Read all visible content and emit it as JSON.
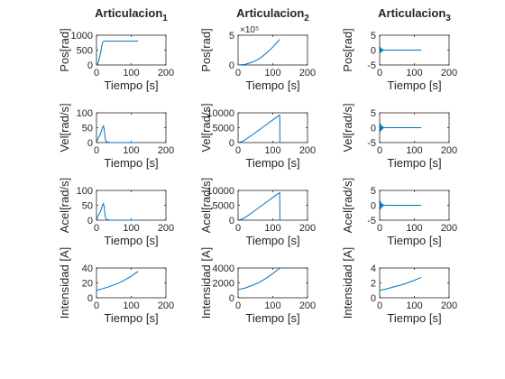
{
  "figure": {
    "column_titles": [
      {
        "base": "Articulacion",
        "sub": "1"
      },
      {
        "base": "Articulacion",
        "sub": "2"
      },
      {
        "base": "Articulacion",
        "sub": "3"
      }
    ]
  },
  "chart_data": [
    {
      "id": "r0c0",
      "type": "line",
      "xlabel": "Tiempo [s]",
      "ylabel": "Pos[rad]",
      "xlim": [
        0,
        200
      ],
      "ylim": [
        0,
        1000
      ],
      "xticks": [
        0,
        100,
        200
      ],
      "yticks": [
        0,
        500,
        1000
      ],
      "line_color": "#0072BD",
      "series": [
        {
          "x": [
            0,
            3,
            6,
            9,
            12,
            14,
            16,
            18,
            20,
            25,
            30,
            40,
            60,
            80,
            100,
            120
          ],
          "y": [
            0,
            30,
            120,
            260,
            420,
            560,
            680,
            760,
            790,
            800,
            800,
            800,
            800,
            800,
            800,
            800
          ]
        }
      ]
    },
    {
      "id": "r0c1",
      "type": "line",
      "xlabel": "Tiempo [s]",
      "ylabel": "Pos[rad]",
      "exponent_label": "×10⁵",
      "xlim": [
        0,
        200
      ],
      "ylim": [
        0,
        5
      ],
      "xticks": [
        0,
        100,
        200
      ],
      "yticks": [
        0,
        5
      ],
      "line_color": "#0072BD",
      "series": [
        {
          "x": [
            0,
            20,
            40,
            60,
            80,
            100,
            120
          ],
          "y": [
            0,
            0.1,
            0.45,
            1.0,
            1.9,
            3.0,
            4.3
          ]
        }
      ]
    },
    {
      "id": "r0c2",
      "type": "line",
      "xlabel": "Tiempo [s]",
      "ylabel": "Pos[rad]",
      "xlim": [
        0,
        200
      ],
      "ylim": [
        -5,
        5
      ],
      "xticks": [
        0,
        100,
        200
      ],
      "yticks": [
        -5,
        0,
        5
      ],
      "line_color": "#0072BD",
      "series": [
        {
          "x": [
            0,
            1,
            2,
            3,
            4,
            5,
            6,
            7,
            8,
            10,
            12,
            15,
            20,
            40,
            80,
            120
          ],
          "y": [
            0,
            1.1,
            -1.0,
            0.9,
            -0.7,
            0.5,
            -0.4,
            0.3,
            -0.2,
            0.15,
            -0.1,
            0.05,
            0,
            0,
            0,
            0
          ]
        }
      ]
    },
    {
      "id": "r1c0",
      "type": "line",
      "xlabel": "Tiempo [s]",
      "ylabel": "Vel[rad/s]",
      "xlim": [
        0,
        200
      ],
      "ylim": [
        0,
        100
      ],
      "xticks": [
        0,
        100,
        200
      ],
      "yticks": [
        0,
        50,
        100
      ],
      "line_color": "#0072BD",
      "series": [
        {
          "x": [
            0,
            3,
            6,
            10,
            14,
            17,
            20,
            22,
            24,
            26,
            30,
            40,
            60,
            80,
            100,
            120
          ],
          "y": [
            0,
            10,
            18,
            25,
            38,
            50,
            56,
            45,
            25,
            8,
            2,
            0,
            0,
            0,
            0,
            0
          ]
        }
      ]
    },
    {
      "id": "r1c1",
      "type": "line",
      "xlabel": "Tiempo [s]",
      "ylabel": "Vel[rad/s]",
      "xlim": [
        0,
        200
      ],
      "ylim": [
        0,
        10000
      ],
      "xticks": [
        0,
        100,
        200
      ],
      "yticks": [
        0,
        5000,
        10000
      ],
      "line_color": "#0072BD",
      "series": [
        {
          "x": [
            0,
            10,
            20,
            40,
            60,
            80,
            100,
            118,
            120,
            120.5,
            122
          ],
          "y": [
            0,
            300,
            900,
            2500,
            4200,
            5900,
            7600,
            9100,
            9200,
            0,
            0
          ]
        }
      ]
    },
    {
      "id": "r1c2",
      "type": "line",
      "xlabel": "Tiempo [s]",
      "ylabel": "Vel[rad/s]",
      "xlim": [
        0,
        200
      ],
      "ylim": [
        -5,
        5
      ],
      "xticks": [
        0,
        100,
        200
      ],
      "yticks": [
        -5,
        0,
        5
      ],
      "line_color": "#0072BD",
      "series": [
        {
          "x": [
            0,
            1,
            2,
            3,
            4,
            5,
            6,
            7,
            8,
            10,
            12,
            15,
            20,
            40,
            80,
            120
          ],
          "y": [
            0,
            1.5,
            -1.4,
            1.2,
            -1.0,
            0.8,
            -0.6,
            0.45,
            -0.3,
            0.2,
            -0.12,
            0.06,
            0,
            0,
            0,
            0
          ]
        }
      ]
    },
    {
      "id": "r2c0",
      "type": "line",
      "xlabel": "Tiempo [s]",
      "ylabel": "Acel[rad/s]",
      "xlim": [
        0,
        200
      ],
      "ylim": [
        0,
        100
      ],
      "xticks": [
        0,
        100,
        200
      ],
      "yticks": [
        0,
        50,
        100
      ],
      "line_color": "#0072BD",
      "series": [
        {
          "x": [
            0,
            3,
            6,
            10,
            14,
            17,
            20,
            22,
            24,
            26,
            30,
            40,
            60,
            80,
            100,
            120
          ],
          "y": [
            0,
            10,
            18,
            25,
            38,
            50,
            56,
            45,
            25,
            8,
            2,
            0,
            0,
            0,
            0,
            0
          ]
        }
      ]
    },
    {
      "id": "r2c1",
      "type": "line",
      "xlabel": "Tiempo [s]",
      "ylabel": "Acel[rad/s]",
      "xlim": [
        0,
        200
      ],
      "ylim": [
        0,
        10000
      ],
      "xticks": [
        0,
        100,
        200
      ],
      "yticks": [
        0,
        5000,
        10000
      ],
      "line_color": "#0072BD",
      "series": [
        {
          "x": [
            0,
            10,
            20,
            40,
            60,
            80,
            100,
            118,
            120,
            120.5,
            122
          ],
          "y": [
            0,
            300,
            900,
            2500,
            4200,
            5900,
            7600,
            9100,
            9200,
            0,
            0
          ]
        }
      ]
    },
    {
      "id": "r2c2",
      "type": "line",
      "xlabel": "Tiempo [s]",
      "ylabel": "Acel[rad/s]",
      "xlim": [
        0,
        200
      ],
      "ylim": [
        -5,
        5
      ],
      "xticks": [
        0,
        100,
        200
      ],
      "yticks": [
        -5,
        0,
        5
      ],
      "line_color": "#0072BD",
      "series": [
        {
          "x": [
            0,
            1,
            2,
            3,
            4,
            5,
            6,
            7,
            8,
            10,
            12,
            15,
            20,
            40,
            80,
            120
          ],
          "y": [
            0,
            1.5,
            -1.4,
            1.2,
            -1.0,
            0.8,
            -0.6,
            0.45,
            -0.3,
            0.2,
            -0.12,
            0.06,
            0,
            0,
            0,
            0
          ]
        }
      ]
    },
    {
      "id": "r3c0",
      "type": "line",
      "xlabel": "Tiempo [s]",
      "ylabel": "Intensidad [A]",
      "xlim": [
        0,
        200
      ],
      "ylim": [
        0,
        40
      ],
      "xticks": [
        0,
        100,
        200
      ],
      "yticks": [
        0,
        20,
        40
      ],
      "line_color": "#0072BD",
      "series": [
        {
          "x": [
            0,
            20,
            40,
            60,
            80,
            100,
            120
          ],
          "y": [
            10,
            12.5,
            15.5,
            19,
            23.5,
            29,
            35.5
          ]
        }
      ]
    },
    {
      "id": "r3c1",
      "type": "line",
      "xlabel": "Tiempo [s]",
      "ylabel": "Intensidad [A]",
      "xlim": [
        0,
        200
      ],
      "ylim": [
        0,
        4000
      ],
      "xticks": [
        0,
        100,
        200
      ],
      "yticks": [
        0,
        2000,
        4000
      ],
      "line_color": "#0072BD",
      "series": [
        {
          "x": [
            0,
            20,
            40,
            60,
            80,
            100,
            120
          ],
          "y": [
            1100,
            1300,
            1650,
            2050,
            2600,
            3250,
            3950
          ]
        }
      ]
    },
    {
      "id": "r3c2",
      "type": "line",
      "xlabel": "Tiempo [s]",
      "ylabel": "Intensidad [A]",
      "xlim": [
        0,
        200
      ],
      "ylim": [
        0,
        4
      ],
      "xticks": [
        0,
        100,
        200
      ],
      "yticks": [
        0,
        2,
        4
      ],
      "line_color": "#0072BD",
      "series": [
        {
          "x": [
            0,
            20,
            40,
            60,
            80,
            100,
            120
          ],
          "y": [
            1.0,
            1.2,
            1.45,
            1.7,
            2.0,
            2.35,
            2.75
          ]
        }
      ]
    }
  ]
}
